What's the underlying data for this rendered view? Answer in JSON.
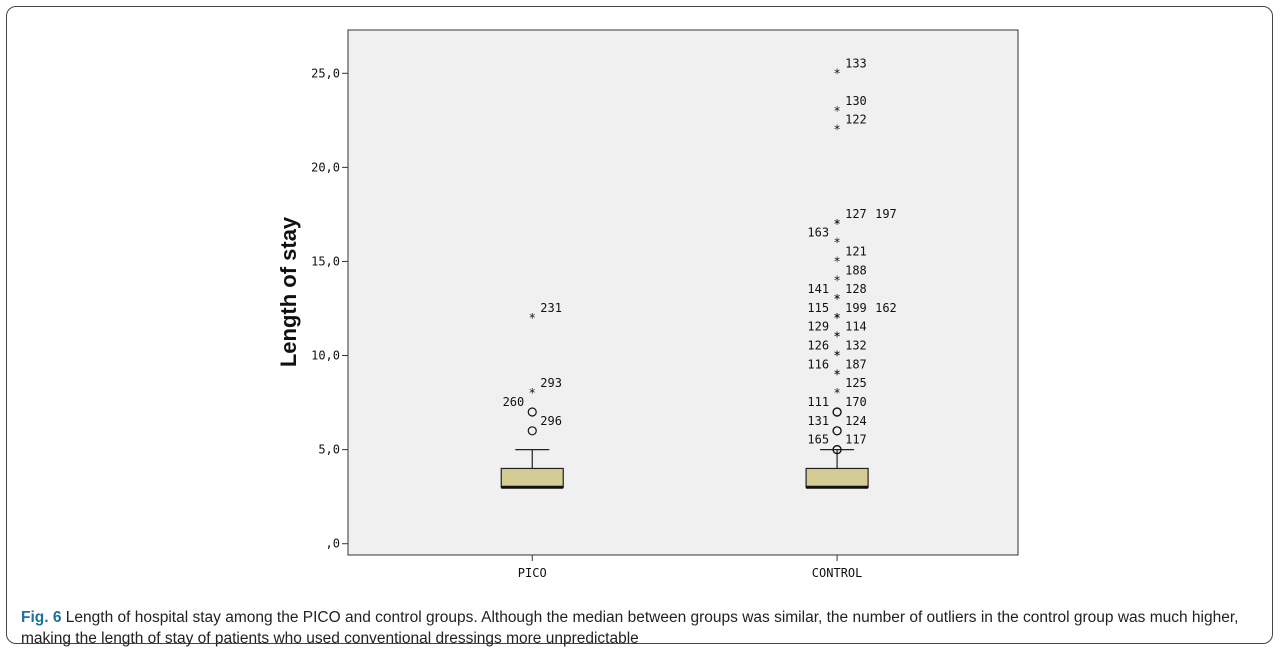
{
  "chart_data": {
    "type": "box",
    "ylabel": "Length of stay",
    "xlabel": "",
    "ylim": [
      -0.6,
      27.3
    ],
    "y_ticks": [
      {
        "value": 0,
        "label": ",0"
      },
      {
        "value": 5,
        "label": "5,0"
      },
      {
        "value": 10,
        "label": "10,0"
      },
      {
        "value": 15,
        "label": "15,0"
      },
      {
        "value": 20,
        "label": "20,0"
      },
      {
        "value": 25,
        "label": "25,0"
      }
    ],
    "categories": [
      "PICO",
      "CONTROL"
    ],
    "boxes": [
      {
        "category": "PICO",
        "q1": 3,
        "median": 3,
        "q3": 4,
        "whisker_low": 3,
        "whisker_high": 5
      },
      {
        "category": "CONTROL",
        "q1": 3,
        "median": 3,
        "q3": 4,
        "whisker_low": 3,
        "whisker_high": 5
      }
    ],
    "outliers": [
      {
        "category": "PICO",
        "y": 12,
        "marker": "star",
        "label": "231",
        "side": "right"
      },
      {
        "category": "PICO",
        "y": 8,
        "marker": "star",
        "label": "293",
        "side": "right"
      },
      {
        "category": "PICO",
        "y": 7,
        "marker": "circle",
        "label": "260",
        "side": "left"
      },
      {
        "category": "PICO",
        "y": 6,
        "marker": "circle",
        "label": "296",
        "side": "right"
      },
      {
        "category": "CONTROL",
        "y": 25,
        "marker": "star",
        "label": "133",
        "side": "right"
      },
      {
        "category": "CONTROL",
        "y": 23,
        "marker": "star",
        "label": "130",
        "side": "right"
      },
      {
        "category": "CONTROL",
        "y": 22,
        "marker": "star",
        "label": "122",
        "side": "right"
      },
      {
        "category": "CONTROL",
        "y": 17,
        "marker": "star",
        "label": "127",
        "side": "right"
      },
      {
        "category": "CONTROL",
        "y": 17,
        "marker": "star",
        "label": "197",
        "side": "right"
      },
      {
        "category": "CONTROL",
        "y": 16,
        "marker": "star",
        "label": "163",
        "side": "left"
      },
      {
        "category": "CONTROL",
        "y": 15,
        "marker": "star",
        "label": "121",
        "side": "right"
      },
      {
        "category": "CONTROL",
        "y": 14,
        "marker": "star",
        "label": "188",
        "side": "right"
      },
      {
        "category": "CONTROL",
        "y": 13,
        "marker": "star",
        "label": "141",
        "side": "left"
      },
      {
        "category": "CONTROL",
        "y": 13,
        "marker": "star",
        "label": "128",
        "side": "right"
      },
      {
        "category": "CONTROL",
        "y": 12,
        "marker": "star",
        "label": "115",
        "side": "left"
      },
      {
        "category": "CONTROL",
        "y": 12,
        "marker": "star",
        "label": "199",
        "side": "right"
      },
      {
        "category": "CONTROL",
        "y": 12,
        "marker": "star",
        "label": "162",
        "side": "right"
      },
      {
        "category": "CONTROL",
        "y": 11,
        "marker": "star",
        "label": "129",
        "side": "left"
      },
      {
        "category": "CONTROL",
        "y": 11,
        "marker": "star",
        "label": "114",
        "side": "right"
      },
      {
        "category": "CONTROL",
        "y": 10,
        "marker": "star",
        "label": "126",
        "side": "left"
      },
      {
        "category": "CONTROL",
        "y": 10,
        "marker": "star",
        "label": "132",
        "side": "right"
      },
      {
        "category": "CONTROL",
        "y": 9,
        "marker": "star",
        "label": "116",
        "side": "left"
      },
      {
        "category": "CONTROL",
        "y": 9,
        "marker": "star",
        "label": "187",
        "side": "right"
      },
      {
        "category": "CONTROL",
        "y": 8,
        "marker": "star",
        "label": "125",
        "side": "right"
      },
      {
        "category": "CONTROL",
        "y": 7,
        "marker": "circle",
        "label": "111",
        "side": "left"
      },
      {
        "category": "CONTROL",
        "y": 7,
        "marker": "circle",
        "label": "170",
        "side": "right"
      },
      {
        "category": "CONTROL",
        "y": 6,
        "marker": "circle",
        "label": "131",
        "side": "left"
      },
      {
        "category": "CONTROL",
        "y": 6,
        "marker": "circle",
        "label": "124",
        "side": "right"
      },
      {
        "category": "CONTROL",
        "y": 5,
        "marker": "circle",
        "label": "165",
        "side": "left"
      },
      {
        "category": "CONTROL",
        "y": 5,
        "marker": "circle",
        "label": "117",
        "side": "right"
      }
    ],
    "colors": {
      "plot_background": "#f0f0f0",
      "box_fill": "#d4cc94",
      "axis": "#333333"
    }
  },
  "caption": {
    "label": "Fig. 6",
    "text": " Length of hospital stay among the PICO and control groups. Although the median between groups was similar, the number of outliers in the control group was much higher, making the length of stay of patients who used conventional dressings more unpredictable"
  }
}
